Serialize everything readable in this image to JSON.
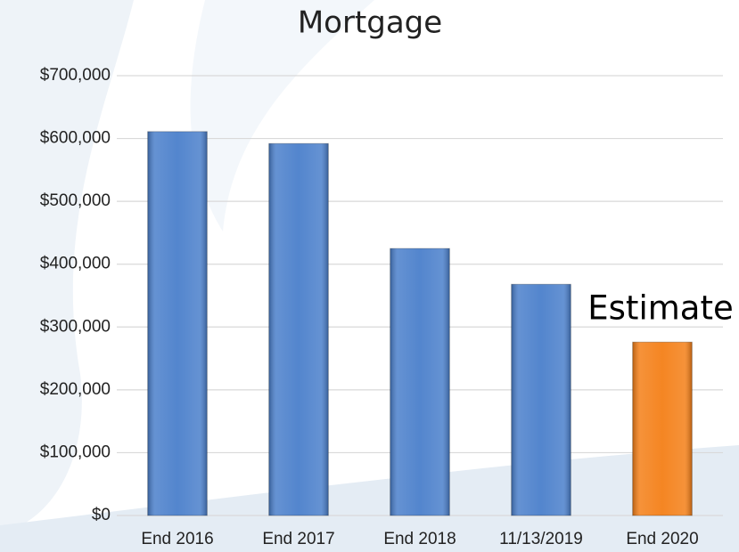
{
  "chart_data": {
    "type": "bar",
    "title": "Mortgage",
    "categories": [
      "End 2016",
      "End 2017",
      "End 2018",
      "11/13/2019",
      "End 2020"
    ],
    "values": [
      611000,
      592000,
      425000,
      368000,
      276000
    ],
    "colors": [
      "#4a7fcb",
      "#4a7fcb",
      "#4a7fcb",
      "#4a7fcb",
      "#f47f17"
    ],
    "annotation": "Estimate",
    "ylim": [
      0,
      700000
    ],
    "yticks": [
      {
        "value": 0,
        "label": "$0"
      },
      {
        "value": 100000,
        "label": "$100,000"
      },
      {
        "value": 200000,
        "label": "$200,000"
      },
      {
        "value": 300000,
        "label": "$300,000"
      },
      {
        "value": 400000,
        "label": "$400,000"
      },
      {
        "value": 500000,
        "label": "$500,000"
      },
      {
        "value": 600000,
        "label": "$600,000"
      },
      {
        "value": 700000,
        "label": "$700,000"
      }
    ],
    "grid": true
  }
}
